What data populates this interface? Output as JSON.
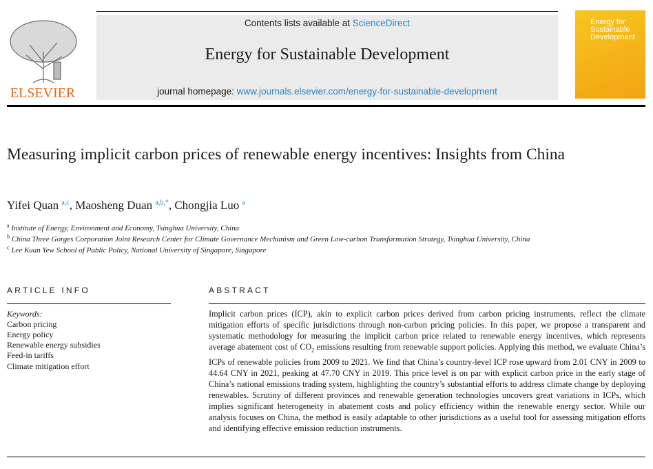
{
  "header": {
    "contents_prefix": "Contents lists available at",
    "contents_link": "ScienceDirect",
    "journal": "Energy for Sustainable Development",
    "homepage_prefix": "journal homepage:",
    "homepage_link": "www.journals.elsevier.com/energy-for-sustainable-development",
    "publisher": "ELSEVIER",
    "cover_title": "Energy for Sustainable Development"
  },
  "title": "Measuring implicit carbon prices of renewable energy incentives: Insights from China",
  "authors": [
    {
      "name": "Yifei Quan",
      "sup": "a,c",
      "sep": ","
    },
    {
      "name": "Maosheng Duan",
      "sup": "a,b,*",
      "sep": ","
    },
    {
      "name": "Chongjia Luo",
      "sup": "a"
    }
  ],
  "affiliations": [
    {
      "label": "a",
      "text": "Institute of Energy, Environment and Economy, Tsinghua University, China"
    },
    {
      "label": "b",
      "text": "China Three Gorges Corporation Joint Research Center for Climate Governance Mechanism and Green Low-carbon Transformation Strategy, Tsinghua University, China"
    },
    {
      "label": "c",
      "text": "Lee Kuan Yew School of Public Policy, National University of Singapore, Singapore"
    }
  ],
  "article_info": {
    "heading": "ARTICLE INFO",
    "keywords_label": "Keywords:",
    "keywords": [
      "Carbon pricing",
      "Energy policy",
      "Renewable energy subsidies",
      "Feed-in tariffs",
      "Climate mitigation effort"
    ]
  },
  "abstract": {
    "heading": "ABSTRACT",
    "text_before": "Implicit carbon prices (ICP), akin to explicit carbon prices derived from carbon pricing instruments, reflect the climate mitigation efforts of specific jurisdictions through non-carbon pricing policies. In this paper, we propose a transparent and systematic methodology for measuring the implicit carbon price related to renewable energy incentives, which represents average abatement cost of CO",
    "subscript": "2",
    "text_after": " emissions resulting from renewable support policies. Applying this method, we evaluate China’s ICPs of renewable policies from 2009 to 2021. We find that China’s country-level ICP rose upward from 2.01 CNY in 2009 to 44.64 CNY in 2021, peaking at 47.70 CNY in 2019. This price level is on par with explicit carbon price in the early stage of China’s national emissions trading system, highlighting the country’s substantial efforts to address climate change by deploying renewables. Scrutiny of different provinces and renewable generation technologies uncovers great variations in ICPs, which implies significant heterogeneity in abatement costs and policy efficiency within the renewable energy sector. While our analysis focuses on China, the method is easily adaptable to other jurisdictions as a useful tool for assessing mitigation efforts and identifying effective emission reduction instruments."
  }
}
